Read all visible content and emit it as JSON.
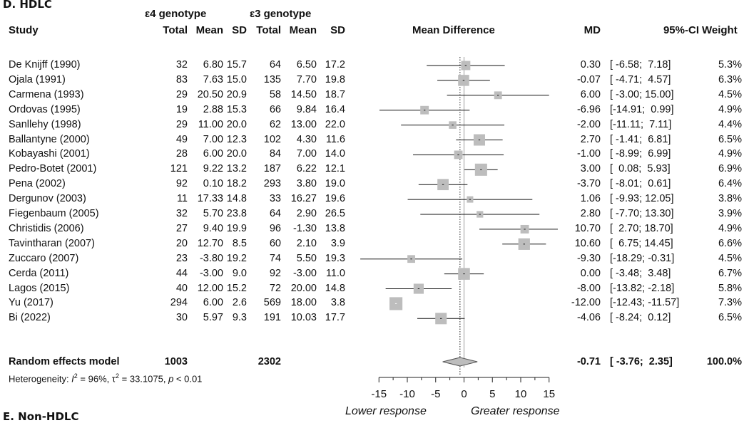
{
  "panel_label": "D. HDLC",
  "next_panel_label": "E. Non-HDLC",
  "groups": {
    "e4": "ε4 genotype",
    "e3": "ε3 genotype"
  },
  "headers": {
    "study": "Study",
    "total1": "Total",
    "mean1": "Mean",
    "sd1": "SD",
    "total2": "Total",
    "mean2": "Mean",
    "sd2": "SD",
    "md_plot": "Mean Difference",
    "md": "MD",
    "ci": "95%-CI",
    "weight": "Weight"
  },
  "summary": {
    "label": "Random effects model",
    "total1": "1003",
    "total2": "2302",
    "md": "-0.71",
    "ci": "[ -3.76;  2.35]",
    "weight": "100.0%"
  },
  "heterogeneity": {
    "prefix": "Heterogeneity: ",
    "i2": "I",
    "i2_val": " = 96%, ",
    "tau": "τ",
    "tau_val": " = 33.1075, ",
    "p": "p",
    "p_val": " < 0.01"
  },
  "axis_labels": {
    "left": "Lower response",
    "right": "Greater response"
  },
  "chart_data": {
    "type": "forest",
    "title": "D. HDLC",
    "xlabel": "Mean Difference",
    "xlim": [
      -15,
      15
    ],
    "x_ticks": [
      -15,
      -10,
      -5,
      0,
      5,
      10,
      15
    ],
    "reference_line": 0,
    "summary_line": -0.71,
    "studies": [
      {
        "study": "De Knijff (1990)",
        "total1": "32",
        "mean1": "6.80",
        "sd1": "15.7",
        "total2": "64",
        "mean2": "6.50",
        "sd2": "17.2",
        "md": 0.3,
        "lo": -6.58,
        "hi": 7.18,
        "md_text": "0.30",
        "ci_text": "[ -6.58;  7.18]",
        "weight": 5.3,
        "weight_text": "5.3%"
      },
      {
        "study": "Ojala (1991)",
        "total1": "83",
        "mean1": "7.63",
        "sd1": "15.0",
        "total2": "135",
        "mean2": "7.70",
        "sd2": "19.8",
        "md": -0.07,
        "lo": -4.71,
        "hi": 4.57,
        "md_text": "-0.07",
        "ci_text": "[ -4.71;  4.57]",
        "weight": 6.3,
        "weight_text": "6.3%"
      },
      {
        "study": "Carmena (1993)",
        "total1": "29",
        "mean1": "20.50",
        "sd1": "20.9",
        "total2": "58",
        "mean2": "14.50",
        "sd2": "18.7",
        "md": 6.0,
        "lo": -3.0,
        "hi": 15.0,
        "md_text": "6.00",
        "ci_text": "[ -3.00; 15.00]",
        "weight": 4.5,
        "weight_text": "4.5%"
      },
      {
        "study": "Ordovas (1995)",
        "total1": "19",
        "mean1": "2.88",
        "sd1": "15.3",
        "total2": "66",
        "mean2": "9.84",
        "sd2": "16.4",
        "md": -6.96,
        "lo": -14.91,
        "hi": 0.99,
        "md_text": "-6.96",
        "ci_text": "[-14.91;  0.99]",
        "weight": 4.9,
        "weight_text": "4.9%"
      },
      {
        "study": "Sanllehy (1998)",
        "total1": "29",
        "mean1": "11.00",
        "sd1": "20.0",
        "total2": "62",
        "mean2": "13.00",
        "sd2": "22.0",
        "md": -2.0,
        "lo": -11.11,
        "hi": 7.11,
        "md_text": "-2.00",
        "ci_text": "[-11.11;  7.11]",
        "weight": 4.4,
        "weight_text": "4.4%"
      },
      {
        "study": "Ballantyne (2000)",
        "total1": "49",
        "mean1": "7.00",
        "sd1": "12.3",
        "total2": "102",
        "mean2": "4.30",
        "sd2": "11.6",
        "md": 2.7,
        "lo": -1.41,
        "hi": 6.81,
        "md_text": "2.70",
        "ci_text": "[ -1.41;  6.81]",
        "weight": 6.5,
        "weight_text": "6.5%"
      },
      {
        "study": "Kobayashi (2001)",
        "total1": "28",
        "mean1": "6.00",
        "sd1": "20.0",
        "total2": "84",
        "mean2": "7.00",
        "sd2": "14.0",
        "md": -1.0,
        "lo": -8.99,
        "hi": 6.99,
        "md_text": "-1.00",
        "ci_text": "[ -8.99;  6.99]",
        "weight": 4.9,
        "weight_text": "4.9%"
      },
      {
        "study": "Pedro-Botet (2001)",
        "total1": "121",
        "mean1": "9.22",
        "sd1": "13.2",
        "total2": "187",
        "mean2": "6.22",
        "sd2": "12.1",
        "md": 3.0,
        "lo": 0.08,
        "hi": 5.93,
        "md_text": "3.00",
        "ci_text": "[  0.08;  5.93]",
        "weight": 6.9,
        "weight_text": "6.9%"
      },
      {
        "study": "Pena (2002)",
        "total1": "92",
        "mean1": "0.10",
        "sd1": "18.2",
        "total2": "293",
        "mean2": "3.80",
        "sd2": "19.0",
        "md": -3.7,
        "lo": -8.01,
        "hi": 0.61,
        "md_text": "-3.70",
        "ci_text": "[ -8.01;  0.61]",
        "weight": 6.4,
        "weight_text": "6.4%"
      },
      {
        "study": "Dergunov (2003)",
        "total1": "11",
        "mean1": "17.33",
        "sd1": "14.8",
        "total2": "33",
        "mean2": "16.27",
        "sd2": "19.6",
        "md": 1.06,
        "lo": -9.93,
        "hi": 12.05,
        "md_text": "1.06",
        "ci_text": "[ -9.93; 12.05]",
        "weight": 3.8,
        "weight_text": "3.8%"
      },
      {
        "study": "Fiegenbaum (2005)",
        "total1": "32",
        "mean1": "5.70",
        "sd1": "23.8",
        "total2": "64",
        "mean2": "2.90",
        "sd2": "26.5",
        "md": 2.8,
        "lo": -7.7,
        "hi": 13.3,
        "md_text": "2.80",
        "ci_text": "[ -7.70; 13.30]",
        "weight": 3.9,
        "weight_text": "3.9%"
      },
      {
        "study": "Christidis (2006)",
        "total1": "27",
        "mean1": "9.40",
        "sd1": "19.9",
        "total2": "96",
        "mean2": "-1.30",
        "sd2": "13.8",
        "md": 10.7,
        "lo": 2.7,
        "hi": 18.7,
        "md_text": "10.70",
        "ci_text": "[  2.70; 18.70]",
        "weight": 4.9,
        "weight_text": "4.9%"
      },
      {
        "study": "Tavintharan (2007)",
        "total1": "20",
        "mean1": "12.70",
        "sd1": "8.5",
        "total2": "60",
        "mean2": "2.10",
        "sd2": "3.9",
        "md": 10.6,
        "lo": 6.75,
        "hi": 14.45,
        "md_text": "10.60",
        "ci_text": "[  6.75; 14.45]",
        "weight": 6.6,
        "weight_text": "6.6%"
      },
      {
        "study": "Zuccaro (2007)",
        "total1": "23",
        "mean1": "-3.80",
        "sd1": "19.2",
        "total2": "74",
        "mean2": "5.50",
        "sd2": "19.3",
        "md": -9.3,
        "lo": -18.29,
        "hi": -0.31,
        "md_text": "-9.30",
        "ci_text": "[-18.29; -0.31]",
        "weight": 4.5,
        "weight_text": "4.5%"
      },
      {
        "study": "Cerda (2011)",
        "total1": "44",
        "mean1": "-3.00",
        "sd1": "9.0",
        "total2": "92",
        "mean2": "-3.00",
        "sd2": "11.0",
        "md": 0.0,
        "lo": -3.48,
        "hi": 3.48,
        "md_text": "0.00",
        "ci_text": "[ -3.48;  3.48]",
        "weight": 6.7,
        "weight_text": "6.7%"
      },
      {
        "study": "Lagos (2015)",
        "total1": "40",
        "mean1": "12.00",
        "sd1": "15.2",
        "total2": "72",
        "mean2": "20.00",
        "sd2": "14.8",
        "md": -8.0,
        "lo": -13.82,
        "hi": -2.18,
        "md_text": "-8.00",
        "ci_text": "[-13.82; -2.18]",
        "weight": 5.8,
        "weight_text": "5.8%"
      },
      {
        "study": "Yu (2017)",
        "total1": "294",
        "mean1": "6.00",
        "sd1": "2.6",
        "total2": "569",
        "mean2": "18.00",
        "sd2": "3.8",
        "md": -12.0,
        "lo": -12.43,
        "hi": -11.57,
        "md_text": "-12.00",
        "ci_text": "[-12.43; -11.57]",
        "weight": 7.3,
        "weight_text": "7.3%"
      },
      {
        "study": "Bi (2022)",
        "total1": "30",
        "mean1": "5.97",
        "sd1": "9.3",
        "total2": "191",
        "mean2": "10.03",
        "sd2": "17.7",
        "md": -4.06,
        "lo": -8.24,
        "hi": 0.12,
        "md_text": "-4.06",
        "ci_text": "[ -8.24;  0.12]",
        "weight": 6.5,
        "weight_text": "6.5%"
      }
    ],
    "diamond": {
      "md": -0.71,
      "lo": -3.76,
      "hi": 2.35
    }
  }
}
